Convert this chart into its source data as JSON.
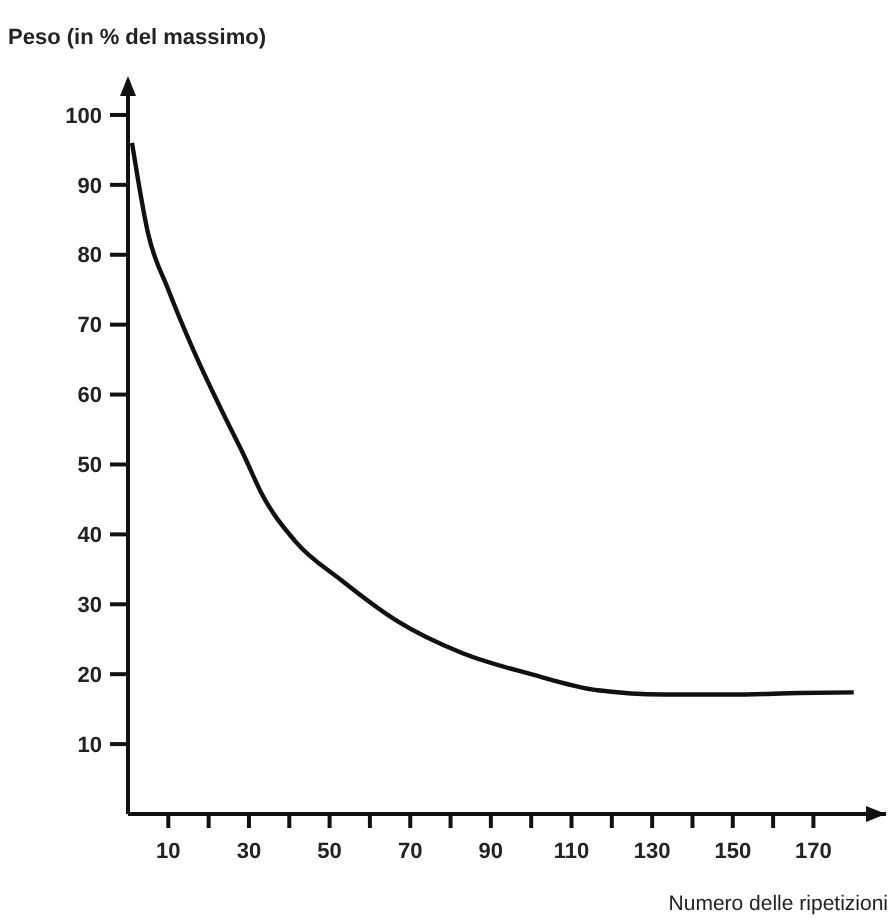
{
  "chart_data": {
    "type": "line",
    "ylabel": "Peso (in % del massimo)",
    "xlabel": "Numero delle ripetizioni",
    "x": [
      1,
      5,
      10,
      16.5,
      23,
      29,
      33,
      41.5,
      53,
      66.5,
      83,
      100,
      116.5,
      133,
      150,
      166.5,
      180
    ],
    "values": [
      96,
      83,
      75,
      66,
      58,
      51,
      46,
      39,
      33.4,
      27.7,
      23,
      20,
      17.7,
      17.1,
      17.1,
      17.3,
      17.4
    ],
    "color": "#111111",
    "marker": "none",
    "line_style": "solid",
    "grid": false,
    "xlim": [
      0,
      188
    ],
    "ylim": [
      0,
      105
    ],
    "xticks": [
      10,
      {
        "value": 20,
        "label": null
      },
      30,
      {
        "value": 40,
        "label": null
      },
      50,
      {
        "value": 60,
        "label": null
      },
      70,
      {
        "value": 80,
        "label": null
      },
      90,
      {
        "value": 100,
        "label": null
      },
      110,
      {
        "value": 120,
        "label": null
      },
      130,
      {
        "value": 140,
        "label": null
      },
      150,
      {
        "value": 160,
        "label": null
      },
      170
    ],
    "yticks": [
      10,
      20,
      30,
      40,
      50,
      60,
      70,
      80,
      90,
      100
    ]
  }
}
